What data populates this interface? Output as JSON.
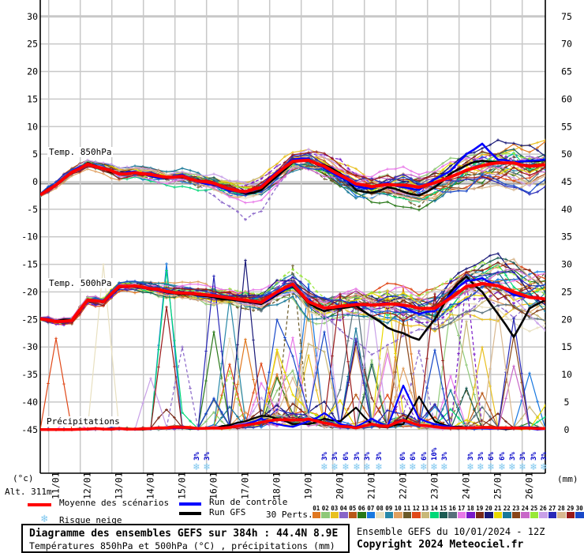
{
  "meta": {
    "alt_label": "Alt. 311m",
    "unit_left": "(°c)",
    "unit_right": "(mm)",
    "footer": {
      "title": "Diagramme des ensembles GEFS sur 384h : 44.4N 8.9E",
      "subtitle": "Températures 850hPa et 500hPa (°C) , précipitations (mm)",
      "run_info": "Ensemble GEFS du 10/01/2024 - 12Z",
      "copyright": "Copyright 2024 Meteociel.fr"
    },
    "legend": {
      "mean": {
        "label": "Moyenne des scénarios",
        "color": "#ff0000"
      },
      "control": {
        "label": "Run de contrôle",
        "color": "#0000ff"
      },
      "gfs": {
        "label": "Run GFS",
        "color": "#000000"
      },
      "perts": {
        "label": "30 Perts."
      },
      "snow": {
        "label": "Risque neige",
        "icon_color": "#7ec7ef"
      }
    }
  },
  "chart_data": {
    "type": "line",
    "bands": [
      "Temp. 850hPa",
      "Temp. 500hPa",
      "Précipitations"
    ],
    "x_start_label": "10/01 12Z",
    "x_hours_step": 12,
    "dates": [
      "11/01",
      "12/01",
      "13/01",
      "14/01",
      "15/01",
      "16/01",
      "17/01",
      "18/01",
      "19/01",
      "20/01",
      "21/01",
      "22/01",
      "23/01",
      "24/01",
      "25/01",
      "26/01"
    ],
    "left_ticks": [
      "30",
      "25",
      "20",
      "15",
      "10",
      "5",
      "0",
      "-5",
      "-10",
      "-15",
      "-20",
      "-25",
      "-30",
      "-35",
      "-40",
      "-45"
    ],
    "right_ticks": [
      "75",
      "70",
      "65",
      "60",
      "55",
      "50",
      "45",
      "40",
      "35",
      "30",
      "25",
      "20",
      "15",
      "10",
      "5",
      "0"
    ],
    "ylim_temp_c": [
      -45,
      30
    ],
    "ylim_precip_mm": [
      0,
      75
    ],
    "grid": true,
    "series": [
      {
        "name": "Moyenne des scénarios — Temp. 850hPa",
        "band": "850",
        "role": "mean",
        "color": "#ff0000",
        "width": 4,
        "values": [
          -2.4,
          -0.6,
          1.7,
          3.2,
          2.4,
          1.4,
          1.6,
          1.3,
          0.8,
          1.0,
          0.1,
          -0.3,
          -1.3,
          -1.8,
          -1.0,
          1.5,
          3.7,
          3.9,
          2.8,
          1.2,
          -0.4,
          -0.9,
          -0.5,
          -0.6,
          -1.0,
          -0.2,
          0.9,
          2.1,
          2.9,
          3.4,
          3.4,
          2.8,
          3.1
        ]
      },
      {
        "name": "Run de contrôle — Temp. 850hPa",
        "band": "850",
        "role": "control",
        "color": "#0000ff",
        "width": 2.6,
        "values": [
          -2.4,
          -0.7,
          1.8,
          3.3,
          2.5,
          1.3,
          1.8,
          1.0,
          0.7,
          1.2,
          0.0,
          -0.5,
          -1.6,
          -2.0,
          -0.8,
          1.8,
          4.0,
          4.2,
          2.5,
          0.8,
          -0.8,
          -1.2,
          -0.2,
          -1.0,
          -1.5,
          0.5,
          2.0,
          5.0,
          6.9,
          4.0,
          3.5,
          3.8,
          4.0
        ]
      },
      {
        "name": "Run GFS — Temp. 850hPa",
        "band": "850",
        "role": "gfs",
        "color": "#000000",
        "width": 2.6,
        "values": [
          -2.4,
          -0.5,
          1.6,
          3.4,
          2.3,
          1.5,
          1.5,
          1.1,
          0.6,
          0.8,
          0.3,
          -0.6,
          -1.2,
          -2.2,
          -1.5,
          1.0,
          3.5,
          3.8,
          3.0,
          1.5,
          -1.5,
          -2.0,
          -1.0,
          -1.8,
          -2.5,
          -1.0,
          1.5,
          3.0,
          3.8,
          3.6,
          3.4,
          3.7,
          3.9
        ]
      },
      {
        "name": "Moyenne des scénarios — Temp. 500hPa",
        "band": "500",
        "role": "mean",
        "color": "#ff0000",
        "width": 4,
        "values": [
          -24.9,
          -25.4,
          -25.2,
          -21.5,
          -21.8,
          -19.0,
          -18.9,
          -19.4,
          -19.9,
          -20.2,
          -20.4,
          -20.7,
          -21.1,
          -21.5,
          -21.9,
          -20.0,
          -18.6,
          -21.8,
          -22.9,
          -22.6,
          -22.3,
          -22.4,
          -22.2,
          -22.4,
          -23.0,
          -23.0,
          -21.1,
          -19.0,
          -18.5,
          -18.9,
          -20.0,
          -21.0,
          -21.3
        ]
      },
      {
        "name": "Run de contrôle — Temp. 500hPa",
        "band": "500",
        "role": "control",
        "color": "#0000ff",
        "width": 2.6,
        "values": [
          -24.9,
          -25.4,
          -25.3,
          -21.6,
          -21.9,
          -19.1,
          -19.0,
          -19.5,
          -20.0,
          -20.3,
          -20.5,
          -20.8,
          -21.2,
          -21.6,
          -22.0,
          -20.2,
          -18.8,
          -21.5,
          -23.0,
          -22.8,
          -22.0,
          -22.5,
          -22.0,
          -22.8,
          -24.0,
          -23.5,
          -20.5,
          -18.0,
          -17.5,
          -19.0,
          -20.5,
          -21.0,
          -21.3
        ]
      },
      {
        "name": "Run GFS — Temp. 500hPa",
        "band": "500",
        "role": "gfs",
        "color": "#000000",
        "width": 2.6,
        "values": [
          -24.9,
          -25.3,
          -25.1,
          -21.4,
          -21.9,
          -19.2,
          -19.1,
          -19.6,
          -20.1,
          -20.4,
          -20.6,
          -21.0,
          -21.4,
          -21.8,
          -22.2,
          -20.5,
          -19.0,
          -22.0,
          -23.5,
          -23.0,
          -22.5,
          -24.5,
          -26.5,
          -27.5,
          -28.7,
          -25.0,
          -20.0,
          -17.2,
          -20.0,
          -24.0,
          -28.2,
          -23.0,
          -21.5
        ]
      },
      {
        "name": "Moyenne des scénarios — Précipitations",
        "band": "precip",
        "role": "mean",
        "color": "#ff0000",
        "width": 3.5,
        "values": [
          0,
          0,
          0,
          0.1,
          0.1,
          0.2,
          0.1,
          0.2,
          0.3,
          0.4,
          0.2,
          0.3,
          0.4,
          0.8,
          1.3,
          1.8,
          1.7,
          1.9,
          1.2,
          0.6,
          0.3,
          1.0,
          0.6,
          1.7,
          0.8,
          0.5,
          0.3,
          0.3,
          0.4,
          0.3,
          0.3,
          0.3,
          0.2
        ]
      },
      {
        "name": "Run de contrôle — Précipitations",
        "band": "precip",
        "role": "control",
        "color": "#0000ff",
        "width": 2.2,
        "values": [
          0,
          0,
          0,
          0,
          0.1,
          0.1,
          0,
          0.1,
          0.2,
          0.3,
          0.1,
          0.2,
          0.5,
          1.0,
          2.0,
          1.0,
          0.5,
          1.5,
          3.0,
          1.0,
          0.5,
          2.0,
          0.5,
          8.0,
          2.0,
          1.0,
          0.5,
          0.3,
          0.2,
          0.2,
          0.3,
          0.2,
          0.1
        ]
      },
      {
        "name": "Run GFS — Précipitations",
        "band": "precip",
        "role": "gfs",
        "color": "#000000",
        "width": 2.2,
        "values": [
          0,
          0,
          0,
          0.1,
          0.1,
          0.1,
          0,
          0.1,
          0.3,
          0.3,
          0.2,
          0.2,
          0.8,
          1.5,
          2.5,
          2.0,
          1.0,
          1.0,
          2.0,
          1.5,
          4.0,
          1.0,
          0.5,
          1.0,
          6.0,
          1.5,
          0.5,
          0.4,
          0.3,
          0.2,
          0.2,
          0.3,
          0.1
        ]
      }
    ],
    "ensemble": {
      "count": 30,
      "colors": [
        "#e07820",
        "#8fc878",
        "#e8c020",
        "#8864c8",
        "#b85818",
        "#287818",
        "#1878e0",
        "#e8e0c0",
        "#2888a8",
        "#e0a060",
        "#6b5a28",
        "#e04818",
        "#c8b878",
        "#00d878",
        "#1c5c54",
        "#58707c",
        "#e878e8",
        "#7818c8",
        "#782818",
        "#181878",
        "#e8d800",
        "#187898",
        "#884418",
        "#c868c8",
        "#98e838",
        "#c8a0e8",
        "#2828b8",
        "#d8b890",
        "#981818",
        "#1848c8"
      ]
    }
  },
  "perts_numbers": [
    "01",
    "02",
    "03",
    "04",
    "05",
    "06",
    "07",
    "08",
    "09",
    "10",
    "11",
    "12",
    "13",
    "14",
    "15",
    "16",
    "17",
    "18",
    "19",
    "20",
    "21",
    "22",
    "23",
    "24",
    "25",
    "26",
    "27",
    "28",
    "29",
    "30"
  ],
  "snow_risk": {
    "marker": "❄",
    "marker_color": "#7ec7ef",
    "label_color": "#0000c8",
    "items": [
      {
        "day": 15.68,
        "pct": "3%"
      },
      {
        "day": 16.01,
        "pct": "3%"
      },
      {
        "day": 19.73,
        "pct": "3%"
      },
      {
        "day": 20.06,
        "pct": "3%"
      },
      {
        "day": 20.41,
        "pct": "6%"
      },
      {
        "day": 20.76,
        "pct": "3%"
      },
      {
        "day": 21.08,
        "pct": "3%"
      },
      {
        "day": 21.46,
        "pct": "3%"
      },
      {
        "day": 22.21,
        "pct": "6%"
      },
      {
        "day": 22.53,
        "pct": "6%"
      },
      {
        "day": 22.88,
        "pct": "6%"
      },
      {
        "day": 23.21,
        "pct": "10%"
      },
      {
        "day": 23.53,
        "pct": "3%"
      },
      {
        "day": 24.36,
        "pct": "3%"
      },
      {
        "day": 24.68,
        "pct": "3%"
      },
      {
        "day": 25.01,
        "pct": "6%"
      },
      {
        "day": 25.36,
        "pct": "6%"
      },
      {
        "day": 25.68,
        "pct": "3%"
      },
      {
        "day": 26.01,
        "pct": "3%"
      },
      {
        "day": 26.36,
        "pct": "3%"
      },
      {
        "day": 26.68,
        "pct": "3%"
      }
    ]
  }
}
